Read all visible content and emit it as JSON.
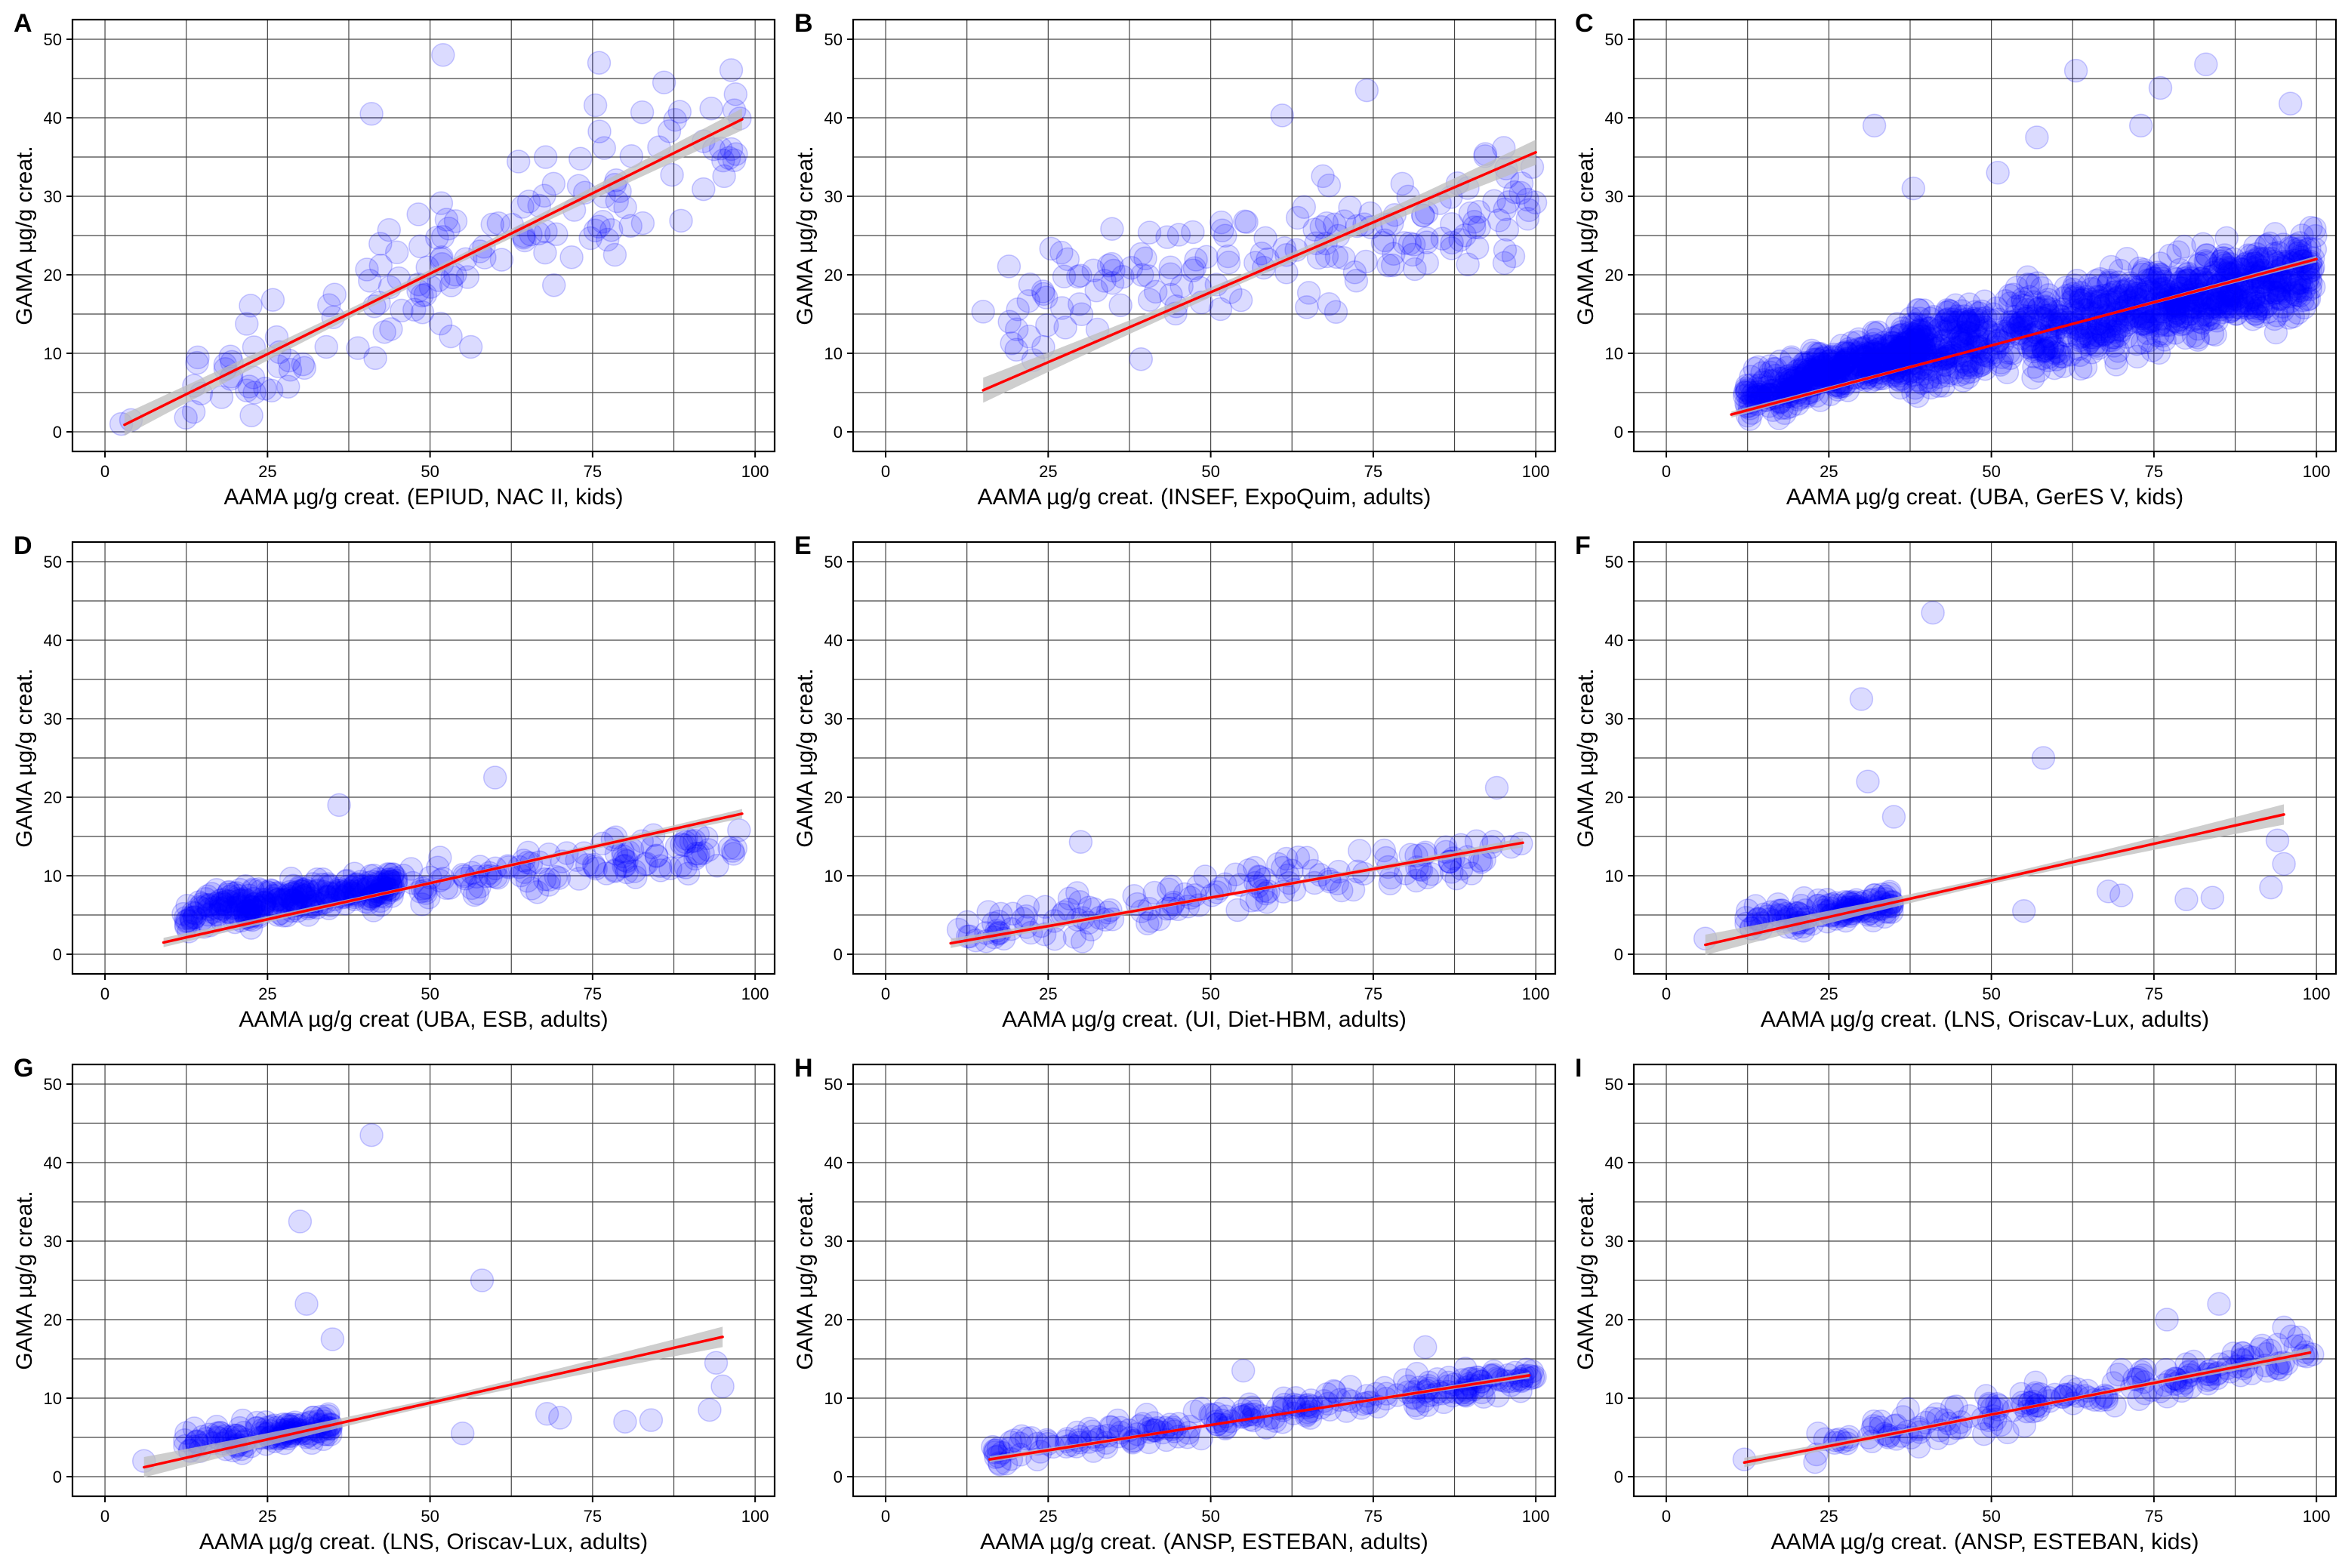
{
  "colors": {
    "point_fill": "#0000ff",
    "point_opacity": 0.14,
    "fit_line": "#ff0000",
    "confidence_band": "#bdbdbd",
    "grid": "#444444"
  },
  "chart_data": [
    {
      "panel": "A",
      "type": "scatter",
      "legend": "none",
      "grid": true,
      "title": "",
      "xlabel": "AAMA µg/g creat. (EPIUD, NAC II, kids)",
      "ylabel": "GAMA µg/g creat.",
      "xlim": [
        -5,
        103
      ],
      "ylim": [
        -2.5,
        52.5
      ],
      "xticks": [
        "0",
        "25",
        "50",
        "75",
        "100"
      ],
      "yticks": [
        "0",
        "10",
        "20",
        "30",
        "40",
        "50"
      ],
      "fit": {
        "x": [
          3,
          98
        ],
        "y": [
          0.9,
          39.8
        ]
      },
      "ci_halfwidth": 1.4,
      "n": 150,
      "seed": 11,
      "clusters": [
        {
          "x_min": 12,
          "x_max": 99,
          "slope": 0.41,
          "intercept": 0.0,
          "spread": 7.5,
          "count": 146
        }
      ],
      "outliers": [
        [
          2.5,
          1
        ],
        [
          4,
          1.5
        ],
        [
          23,
          5
        ],
        [
          52,
          48
        ],
        [
          76,
          47
        ],
        [
          86,
          44.5
        ],
        [
          97,
          43
        ],
        [
          41,
          40.5
        ]
      ]
    },
    {
      "panel": "B",
      "type": "scatter",
      "legend": "none",
      "grid": true,
      "title": "",
      "xlabel": "AAMA µg/g creat. (INSEF, ExpoQuim, adults)",
      "ylabel": "GAMA µg/g creat.",
      "xlim": [
        -5,
        103
      ],
      "ylim": [
        -2.5,
        52.5
      ],
      "xticks": [
        "0",
        "25",
        "50",
        "75",
        "100"
      ],
      "yticks": [
        "0",
        "10",
        "20",
        "30",
        "40",
        "50"
      ],
      "fit": {
        "x": [
          15,
          100
        ],
        "y": [
          5.3,
          35.6
        ]
      },
      "ci_halfwidth": 1.6,
      "n": 170,
      "seed": 23,
      "clusters": [
        {
          "x_min": 18,
          "x_max": 100,
          "slope": 0.18,
          "intercept": 12.0,
          "spread": 6.5,
          "count": 167
        }
      ],
      "outliers": [
        [
          15,
          15.3
        ],
        [
          74,
          43.5
        ],
        [
          61,
          40.3
        ]
      ]
    },
    {
      "panel": "C",
      "type": "scatter",
      "legend": "none",
      "grid": true,
      "title": "",
      "xlabel": "AAMA µg/g creat. (UBA, GerES V, kids)",
      "ylabel": "GAMA µg/g creat.",
      "xlim": [
        -5,
        103
      ],
      "ylim": [
        -2.5,
        52.5
      ],
      "xticks": [
        "0",
        "25",
        "50",
        "75",
        "100"
      ],
      "yticks": [
        "0",
        "10",
        "20",
        "30",
        "40",
        "50"
      ],
      "fit": {
        "x": [
          10,
          100
        ],
        "y": [
          2.2,
          22.0
        ]
      },
      "ci_halfwidth": 0.4,
      "n": 1450,
      "seed": 37,
      "clusters": [
        {
          "x_min": 12,
          "x_max": 40,
          "slope": 0.24,
          "intercept": 1.5,
          "spread": 2.6,
          "count": 450
        },
        {
          "x_min": 35,
          "x_max": 100,
          "slope": 0.17,
          "intercept": 3.5,
          "spread": 4.5,
          "count": 1000
        }
      ],
      "outliers": [
        [
          63,
          46
        ],
        [
          83,
          46.8
        ],
        [
          32,
          39
        ],
        [
          76,
          43.8
        ],
        [
          96,
          41.8
        ],
        [
          38,
          31
        ],
        [
          51,
          33
        ],
        [
          57,
          37.5
        ],
        [
          73,
          39
        ]
      ]
    },
    {
      "panel": "D",
      "type": "scatter",
      "legend": "none",
      "grid": true,
      "title": "",
      "xlabel": "AAMA µg/g creat  (UBA, ESB, adults)",
      "ylabel": "GAMA µg/g creat.",
      "xlim": [
        -5,
        103
      ],
      "ylim": [
        -2.5,
        52.5
      ],
      "xticks": [
        "0",
        "25",
        "50",
        "75",
        "100"
      ],
      "yticks": [
        "0",
        "10",
        "20",
        "30",
        "40",
        "50"
      ],
      "fit": {
        "x": [
          9,
          98
        ],
        "y": [
          1.5,
          17.9
        ]
      },
      "ci_halfwidth": 0.6,
      "n": 420,
      "seed": 41,
      "clusters": [
        {
          "x_min": 12,
          "x_max": 45,
          "slope": 0.12,
          "intercept": 3.5,
          "spread": 1.8,
          "count": 300
        },
        {
          "x_min": 40,
          "x_max": 98,
          "slope": 0.1,
          "intercept": 4.0,
          "spread": 2.5,
          "count": 118
        }
      ],
      "outliers": [
        [
          60,
          22.5
        ],
        [
          36,
          19
        ],
        [
          97,
          13.5
        ]
      ]
    },
    {
      "panel": "E",
      "type": "scatter",
      "legend": "none",
      "grid": true,
      "title": "",
      "xlabel": "AAMA µg/g creat. (UI, Diet-HBM, adults)",
      "ylabel": "GAMA µg/g creat.",
      "xlim": [
        -5,
        103
      ],
      "ylim": [
        -2.5,
        52.5
      ],
      "xticks": [
        "0",
        "25",
        "50",
        "75",
        "100"
      ],
      "yticks": [
        "0",
        "10",
        "20",
        "30",
        "40",
        "50"
      ],
      "fit": {
        "x": [
          10,
          98
        ],
        "y": [
          1.4,
          14.2
        ]
      },
      "ci_halfwidth": 0.6,
      "n": 150,
      "seed": 53,
      "clusters": [
        {
          "x_min": 10,
          "x_max": 98,
          "slope": 0.13,
          "intercept": 1.0,
          "spread": 2.2,
          "count": 148
        }
      ],
      "outliers": [
        [
          94,
          21.2
        ],
        [
          30,
          14.3
        ]
      ]
    },
    {
      "panel": "F",
      "type": "scatter",
      "legend": "none",
      "grid": true,
      "title": "",
      "xlabel": "AAMA µg/g creat. (LNS, Oriscav-Lux, adults)",
      "ylabel": "GAMA µg/g creat.",
      "xlim": [
        -5,
        103
      ],
      "ylim": [
        -2.5,
        52.5
      ],
      "xticks": [
        "0",
        "25",
        "50",
        "75",
        "100"
      ],
      "yticks": [
        "0",
        "10",
        "20",
        "30",
        "40",
        "50"
      ],
      "fit": {
        "x": [
          6,
          95
        ],
        "y": [
          1.2,
          17.8
        ]
      },
      "ci_halfwidth": 1.3,
      "n": 160,
      "seed": 67,
      "clusters": [
        {
          "x_min": 12,
          "x_max": 35,
          "slope": 0.12,
          "intercept": 2.5,
          "spread": 1.5,
          "count": 140
        }
      ],
      "outliers": [
        [
          41,
          43.5
        ],
        [
          30,
          32.5
        ],
        [
          31,
          22
        ],
        [
          58,
          25
        ],
        [
          35,
          17.5
        ],
        [
          6,
          2
        ],
        [
          95,
          11.5
        ],
        [
          93,
          8.5
        ],
        [
          94,
          14.5
        ],
        [
          68,
          8
        ],
        [
          70,
          7.5
        ],
        [
          80,
          7
        ],
        [
          84,
          7.2
        ],
        [
          55,
          5.5
        ]
      ]
    },
    {
      "panel": "G",
      "type": "scatter",
      "legend": "none",
      "grid": true,
      "title": "",
      "xlabel": "AAMA µg/g creat. (LNS, Oriscav-Lux, adults)",
      "ylabel": "GAMA µg/g creat.",
      "xlim": [
        -5,
        103
      ],
      "ylim": [
        -2.5,
        52.5
      ],
      "xticks": [
        "0",
        "25",
        "50",
        "75",
        "100"
      ],
      "yticks": [
        "0",
        "10",
        "20",
        "30",
        "40",
        "50"
      ],
      "fit": {
        "x": [
          6,
          95
        ],
        "y": [
          1.2,
          17.8
        ]
      },
      "ci_halfwidth": 1.3,
      "n": 160,
      "seed": 67,
      "clusters": [
        {
          "x_min": 12,
          "x_max": 35,
          "slope": 0.12,
          "intercept": 2.5,
          "spread": 1.5,
          "count": 140
        }
      ],
      "outliers": [
        [
          41,
          43.5
        ],
        [
          30,
          32.5
        ],
        [
          31,
          22
        ],
        [
          58,
          25
        ],
        [
          35,
          17.5
        ],
        [
          6,
          2
        ],
        [
          95,
          11.5
        ],
        [
          93,
          8.5
        ],
        [
          94,
          14.5
        ],
        [
          68,
          8
        ],
        [
          70,
          7.5
        ],
        [
          80,
          7
        ],
        [
          84,
          7.2
        ],
        [
          55,
          5.5
        ]
      ]
    },
    {
      "panel": "H",
      "type": "scatter",
      "legend": "none",
      "grid": true,
      "title": "",
      "xlabel": "AAMA µg/g creat. (ANSP, ESTEBAN, adults)",
      "ylabel": "GAMA µg/g creat.",
      "xlim": [
        -5,
        103
      ],
      "ylim": [
        -2.5,
        52.5
      ],
      "xticks": [
        "0",
        "25",
        "50",
        "75",
        "100"
      ],
      "yticks": [
        "0",
        "10",
        "20",
        "30",
        "40",
        "50"
      ],
      "fit": {
        "x": [
          16,
          99
        ],
        "y": [
          2.2,
          12.9
        ]
      },
      "ci_halfwidth": 0.4,
      "n": 240,
      "seed": 79,
      "clusters": [
        {
          "x_min": 16,
          "x_max": 100,
          "slope": 0.12,
          "intercept": 1.0,
          "spread": 1.7,
          "count": 238
        }
      ],
      "outliers": [
        [
          83,
          16.5
        ],
        [
          55,
          13.5
        ]
      ]
    },
    {
      "panel": "I",
      "type": "scatter",
      "legend": "none",
      "grid": true,
      "title": "",
      "xlabel": "AAMA µg/g creat. (ANSP, ESTEBAN, kids)",
      "ylabel": "GAMA µg/g creat.",
      "xlim": [
        -5,
        103
      ],
      "ylim": [
        -2.5,
        52.5
      ],
      "xticks": [
        "0",
        "25",
        "50",
        "75",
        "100"
      ],
      "yticks": [
        "0",
        "10",
        "20",
        "30",
        "40",
        "50"
      ],
      "fit": {
        "x": [
          12,
          99
        ],
        "y": [
          1.8,
          15.8
        ]
      },
      "ci_halfwidth": 0.6,
      "n": 190,
      "seed": 83,
      "clusters": [
        {
          "x_min": 20,
          "x_max": 100,
          "slope": 0.16,
          "intercept": 0.0,
          "spread": 2.0,
          "count": 186
        }
      ],
      "outliers": [
        [
          12,
          2.2
        ],
        [
          85,
          22
        ],
        [
          77,
          20
        ],
        [
          95,
          19
        ]
      ]
    }
  ]
}
